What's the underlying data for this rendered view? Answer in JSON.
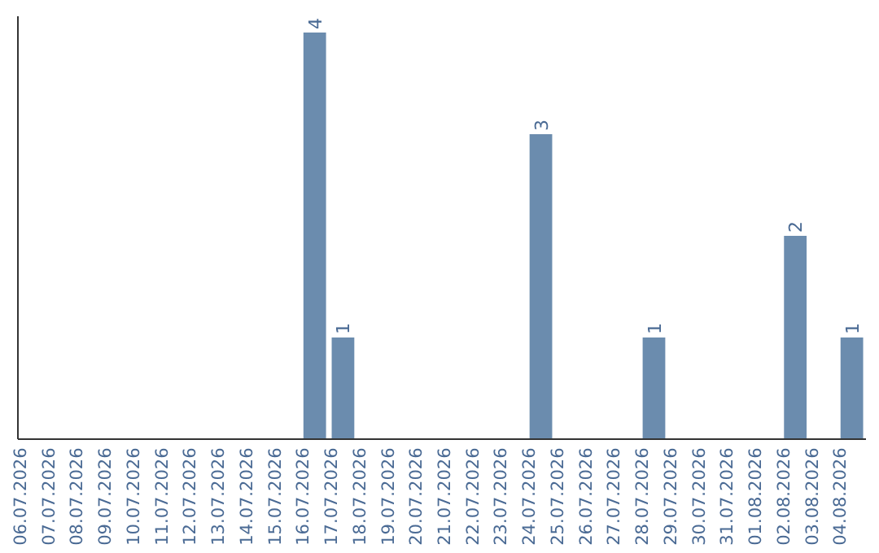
{
  "chart_data": {
    "type": "bar",
    "categories": [
      "06.07.2026",
      "07.07.2026",
      "08.07.2026",
      "09.07.2026",
      "10.07.2026",
      "11.07.2026",
      "12.07.2026",
      "13.07.2026",
      "14.07.2026",
      "15.07.2026",
      "16.07.2026",
      "17.07.2026",
      "18.07.2026",
      "19.07.2026",
      "20.07.2026",
      "21.07.2026",
      "22.07.2026",
      "23.07.2026",
      "24.07.2026",
      "25.07.2026",
      "26.07.2026",
      "27.07.2026",
      "28.07.2026",
      "29.07.2026",
      "30.07.2026",
      "31.07.2026",
      "01.08.2026",
      "02.08.2026",
      "03.08.2026",
      "04.08.2026"
    ],
    "values": [
      null,
      null,
      null,
      null,
      null,
      null,
      null,
      null,
      null,
      null,
      4,
      1,
      null,
      null,
      null,
      null,
      null,
      null,
      3,
      null,
      null,
      null,
      1,
      null,
      null,
      null,
      null,
      2,
      null,
      1
    ],
    "color": "#6b8cae",
    "data_labels": true,
    "tick_labels": "x",
    "grid": false
  }
}
